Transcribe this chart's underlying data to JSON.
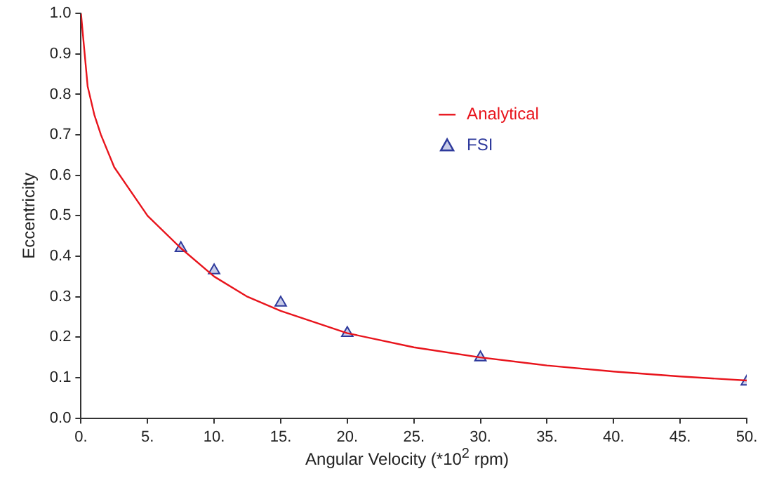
{
  "chart_data": {
    "type": "line",
    "xlabel": "Angular Velocity (*10$^{2}$ rpm)",
    "ylabel": "Eccentricity",
    "xlim": [
      0,
      50
    ],
    "ylim": [
      0,
      1
    ],
    "xticks": [
      {
        "value": 0,
        "label": "0."
      },
      {
        "value": 5,
        "label": "5."
      },
      {
        "value": 10,
        "label": "10."
      },
      {
        "value": 15,
        "label": "15."
      },
      {
        "value": 20,
        "label": "20."
      },
      {
        "value": 25,
        "label": "25."
      },
      {
        "value": 30,
        "label": "30."
      },
      {
        "value": 35,
        "label": "35."
      },
      {
        "value": 40,
        "label": "40."
      },
      {
        "value": 45,
        "label": "45."
      },
      {
        "value": 50,
        "label": "50."
      }
    ],
    "yticks": [
      {
        "value": 0,
        "label": "0.0"
      },
      {
        "value": 0.1,
        "label": "0.1"
      },
      {
        "value": 0.2,
        "label": "0.2"
      },
      {
        "value": 0.3,
        "label": "0.3"
      },
      {
        "value": 0.4,
        "label": "0.4"
      },
      {
        "value": 0.5,
        "label": "0.5"
      },
      {
        "value": 0.6,
        "label": "0.6"
      },
      {
        "value": 0.7,
        "label": "0.7"
      },
      {
        "value": 0.8,
        "label": "0.8"
      },
      {
        "value": 0.9,
        "label": "0.9"
      },
      {
        "value": 1,
        "label": "1.0"
      }
    ],
    "grid": false,
    "legend": "top right",
    "series": [
      {
        "name": "Analytical",
        "color": "#e8141c",
        "marker": "none",
        "line_style": "solid",
        "x": [
          0,
          0.5,
          1,
          1.5,
          2.5,
          5,
          7.5,
          10,
          12.5,
          15,
          20,
          25,
          30,
          35,
          40,
          45,
          50
        ],
        "values": [
          1.0,
          0.82,
          0.75,
          0.7,
          0.62,
          0.5,
          0.42,
          0.35,
          0.3,
          0.265,
          0.21,
          0.175,
          0.15,
          0.13,
          0.115,
          0.103,
          0.093
        ]
      },
      {
        "name": "FSI",
        "type": "scatter",
        "color": "#2e3a9c",
        "marker": "triangle",
        "x": [
          7.5,
          10,
          15,
          20,
          30,
          50
        ],
        "values": [
          0.42,
          0.365,
          0.285,
          0.21,
          0.15,
          0.09
        ]
      }
    ]
  }
}
